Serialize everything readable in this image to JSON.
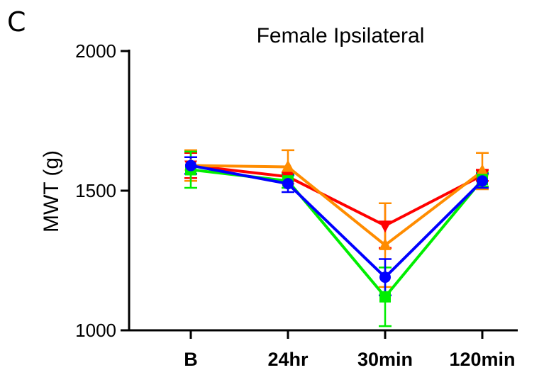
{
  "panel_label": "C",
  "chart_data": {
    "type": "line",
    "title": "Female Ipsilateral",
    "xlabel": "",
    "ylabel": "MWT (g)",
    "categories": [
      "B",
      "24hr",
      "30min",
      "120min"
    ],
    "ylim": [
      1000,
      2000
    ],
    "yticks": [
      1000,
      1500,
      2000
    ],
    "grid": false,
    "legend": "none",
    "series": [
      {
        "color": "#ff0000",
        "marker": "triangle-down",
        "values": [
          1590,
          1550,
          1375,
          1555
        ],
        "errors": [
          45,
          15,
          80,
          20
        ]
      },
      {
        "color": "#ff8c00",
        "marker": "triangle-up",
        "values": [
          1590,
          1585,
          1305,
          1570
        ],
        "errors": [
          55,
          60,
          150,
          65
        ]
      },
      {
        "color": "#00ee00",
        "marker": "square",
        "values": [
          1575,
          1535,
          1120,
          1540
        ],
        "errors": [
          65,
          25,
          105,
          25
        ]
      },
      {
        "color": "#0000ff",
        "marker": "circle",
        "values": [
          1590,
          1525,
          1190,
          1535
        ],
        "errors": [
          30,
          30,
          65,
          25
        ]
      }
    ]
  }
}
